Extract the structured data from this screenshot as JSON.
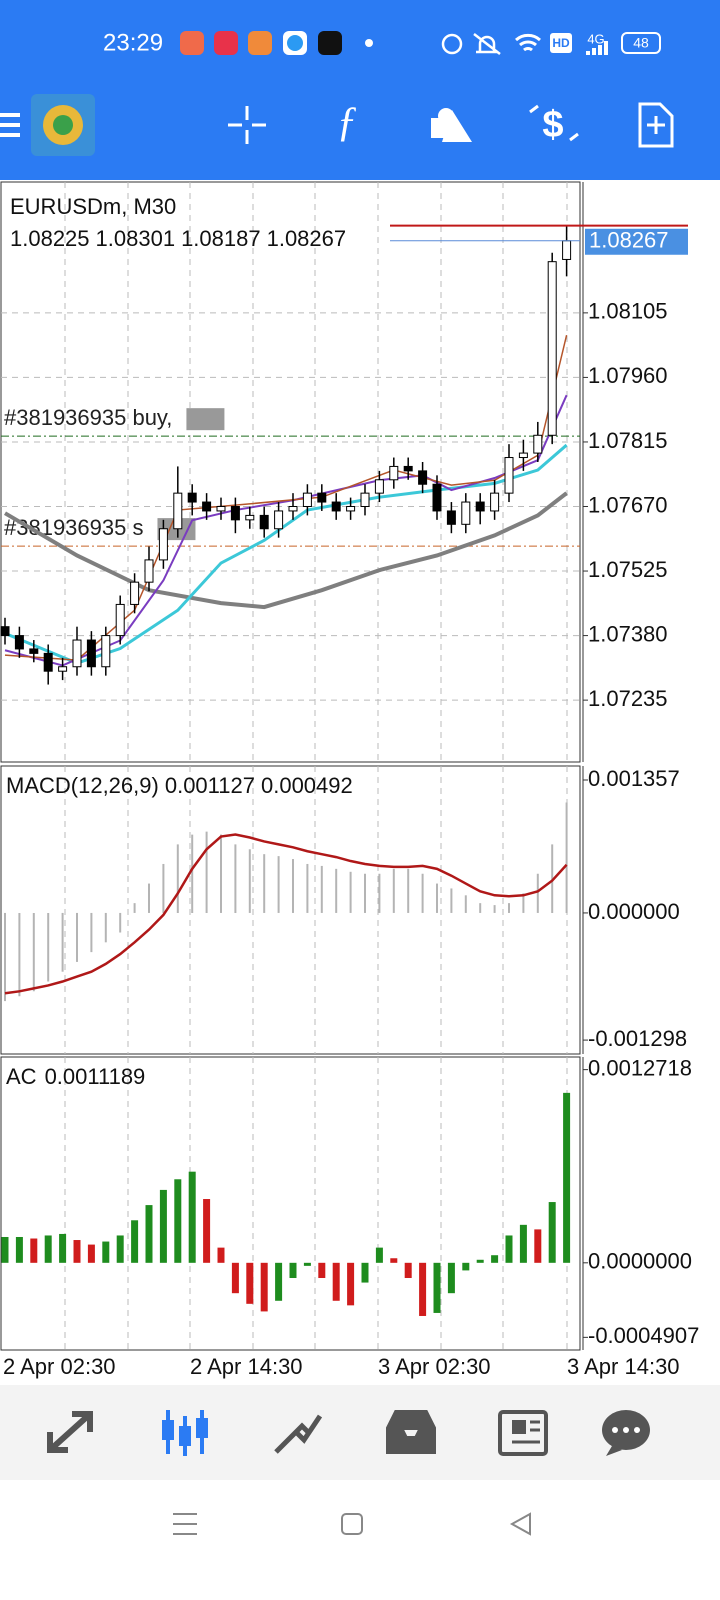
{
  "status_bar": {
    "time": "23:29",
    "hd": "HD",
    "network": "4G",
    "battery": "48"
  },
  "chart_data": [
    {
      "type": "candlestick",
      "title": "EURUSDm, M30",
      "candles": [
        [
          1.074,
          1.0742,
          1.0736,
          1.0738
        ],
        [
          1.0738,
          1.074,
          1.0733,
          1.0735
        ],
        [
          1.0735,
          1.0737,
          1.0732,
          1.0734
        ],
        [
          1.0734,
          1.0736,
          1.0727,
          1.073
        ],
        [
          1.073,
          1.0733,
          1.0728,
          1.0731
        ],
        [
          1.0731,
          1.074,
          1.0729,
          1.0737
        ],
        [
          1.0737,
          1.0739,
          1.0729,
          1.0731
        ],
        [
          1.0731,
          1.074,
          1.0729,
          1.0738
        ],
        [
          1.0738,
          1.0747,
          1.0736,
          1.0745
        ],
        [
          1.0745,
          1.0752,
          1.0743,
          1.075
        ],
        [
          1.075,
          1.0758,
          1.0748,
          1.0755
        ],
        [
          1.0755,
          1.0764,
          1.0753,
          1.0762
        ],
        [
          1.0762,
          1.0776,
          1.076,
          1.077
        ],
        [
          1.077,
          1.0772,
          1.0765,
          1.0768
        ],
        [
          1.0768,
          1.077,
          1.0764,
          1.0766
        ],
        [
          1.0766,
          1.0769,
          1.0764,
          1.0767
        ],
        [
          1.0767,
          1.0769,
          1.0761,
          1.0764
        ],
        [
          1.0764,
          1.0767,
          1.0762,
          1.0765
        ],
        [
          1.0765,
          1.0767,
          1.076,
          1.0762
        ],
        [
          1.0762,
          1.0768,
          1.076,
          1.0766
        ],
        [
          1.0766,
          1.077,
          1.0764,
          1.0767
        ],
        [
          1.0767,
          1.0772,
          1.0765,
          1.077
        ],
        [
          1.077,
          1.0772,
          1.0766,
          1.0768
        ],
        [
          1.0768,
          1.077,
          1.0764,
          1.0766
        ],
        [
          1.0766,
          1.0769,
          1.0764,
          1.0767
        ],
        [
          1.0767,
          1.0772,
          1.0765,
          1.077
        ],
        [
          1.077,
          1.0775,
          1.0768,
          1.0773
        ],
        [
          1.0773,
          1.0778,
          1.0771,
          1.0776
        ],
        [
          1.0776,
          1.0778,
          1.0773,
          1.0775
        ],
        [
          1.0775,
          1.0777,
          1.077,
          1.0772
        ],
        [
          1.0772,
          1.0774,
          1.0764,
          1.0766
        ],
        [
          1.0766,
          1.0768,
          1.0761,
          1.0763
        ],
        [
          1.0763,
          1.077,
          1.0761,
          1.0768
        ],
        [
          1.0768,
          1.077,
          1.0763,
          1.0766
        ],
        [
          1.0766,
          1.0773,
          1.0764,
          1.077
        ],
        [
          1.077,
          1.0781,
          1.0768,
          1.0778
        ],
        [
          1.0778,
          1.0782,
          1.0775,
          1.0779
        ],
        [
          1.0779,
          1.0786,
          1.0777,
          1.0783
        ],
        [
          1.0783,
          1.0824,
          1.0781,
          1.0822
        ],
        [
          1.08225,
          1.08301,
          1.08187,
          1.08267
        ]
      ],
      "up_color": "#ffffff",
      "down_color": "#000000",
      "ylim": [
        1.07096,
        1.08399
      ],
      "yticks": [
        1.08105,
        {
          "value": 1.0796,
          "label": "1.07960"
        },
        1.07815,
        {
          "value": 1.0767,
          "label": "1.07670"
        },
        1.07525,
        {
          "value": 1.0738,
          "label": "1.07380"
        },
        1.07235
      ],
      "grid": true,
      "x_labels": [
        "2 Apr 02:30",
        "2 Apr 14:30",
        "3 Apr 02:30",
        "3 Apr 14:30"
      ],
      "moving_averages": [
        {
          "color": "#7f7f7f",
          "width": 4,
          "x": [
            0,
            5,
            10,
            15,
            18,
            22,
            26,
            30,
            34,
            37,
            39
          ],
          "values": [
            1.07655,
            1.0756,
            1.07482,
            1.07453,
            1.07444,
            1.07482,
            1.07527,
            1.0756,
            1.07605,
            1.0765,
            1.077
          ]
        },
        {
          "color": "#3cc8d8",
          "width": 3,
          "x": [
            0,
            5,
            8,
            12,
            15,
            18,
            21,
            26,
            30,
            34,
            37,
            39
          ],
          "values": [
            1.07385,
            1.07318,
            1.07351,
            1.07437,
            1.07543,
            1.07594,
            1.07662,
            1.07691,
            1.07707,
            1.07722,
            1.07752,
            1.07808
          ]
        },
        {
          "color": "#7a3cc0",
          "width": 2,
          "x": [
            0,
            4,
            8,
            11,
            13,
            16,
            20,
            26,
            29,
            31,
            34,
            37,
            39
          ],
          "values": [
            1.07347,
            1.07313,
            1.07369,
            1.07504,
            1.07639,
            1.07662,
            1.07684,
            1.07729,
            1.0774,
            1.07707,
            1.07734,
            1.07774,
            1.0792
          ]
        },
        {
          "color": "#b5552a",
          "width": 1.5,
          "x": [
            0,
            5,
            9,
            12,
            16,
            22,
            27,
            31,
            34,
            37,
            39
          ],
          "values": [
            1.07336,
            1.07325,
            1.07437,
            1.07662,
            1.07673,
            1.07691,
            1.07752,
            1.07718,
            1.07729,
            1.07785,
            1.08055
          ]
        }
      ],
      "orders": [
        {
          "label": "#381936935 buy,",
          "price": 1.07828,
          "color": "#1f6b1f"
        },
        {
          "label": "#381936935 s",
          "price": 1.07581,
          "color": "#c86428"
        }
      ]
    },
    {
      "type": "macd",
      "title": "MACD(12,26,9)",
      "histogram": [
        -0.0009,
        -0.00085,
        -0.0008,
        -0.0007,
        -0.0006,
        -0.0005,
        -0.0004,
        -0.0003,
        -0.0002,
        0.0001,
        0.0003,
        0.0005,
        0.0007,
        0.0008,
        0.00083,
        0.0008,
        0.0007,
        0.00065,
        0.0006,
        0.00058,
        0.00055,
        0.0005,
        0.00048,
        0.00045,
        0.00042,
        0.0004,
        0.0004,
        0.00045,
        0.00045,
        0.0004,
        0.0003,
        0.00025,
        0.00018,
        0.0001,
        8e-05,
        0.0001,
        0.0002,
        0.0004,
        0.0007,
        0.001127
      ],
      "signal": [
        -0.00082,
        -0.0008,
        -0.00077,
        -0.00074,
        -0.0007,
        -0.00065,
        -0.0006,
        -0.00052,
        -0.00042,
        -0.0003,
        -0.00017,
        -2e-05,
        0.0002,
        0.00045,
        0.00065,
        0.00078,
        0.0008,
        0.00077,
        0.00073,
        0.0007,
        0.00067,
        0.00063,
        0.0006,
        0.00057,
        0.00053,
        0.0005,
        0.00048,
        0.00047,
        0.00047,
        0.00048,
        0.00045,
        0.00038,
        0.0003,
        0.00022,
        0.00018,
        0.00017,
        0.00018,
        0.00022,
        0.00033,
        0.000492
      ],
      "histogram_color": "#b4b4b4",
      "signal_color": "#b01818",
      "ylim": [
        -0.00144,
        0.0015
      ],
      "yticks": [
        0.001357,
        {
          "value": 0,
          "label": "0.000000"
        },
        -0.001298
      ]
    },
    {
      "type": "ac",
      "title": "AC",
      "values": [
        0.00017,
        0.00017,
        0.00016,
        0.00018,
        0.00019,
        0.00015,
        0.00012,
        0.00014,
        0.00018,
        0.00028,
        0.00038,
        0.00048,
        0.00055,
        0.0006,
        0.00042,
        0.0001,
        -0.0002,
        -0.00027,
        -0.00032,
        -0.00025,
        -0.0001,
        -2e-05,
        -0.0001,
        -0.00025,
        -0.00028,
        -0.00013,
        0.0001,
        3e-05,
        -0.0001,
        -0.00035,
        -0.00033,
        -0.0002,
        -5e-05,
        2e-05,
        5e-05,
        0.00018,
        0.00025,
        0.00022,
        0.0004,
        0.0011189
      ],
      "up_color": "#1e8c1e",
      "down_color": "#d01c1c",
      "ylim": [
        -0.000574,
        0.001355
      ],
      "yticks": [
        0.0012718,
        {
          "value": 0,
          "label": "0.0000000"
        },
        -0.0004907
      ]
    }
  ]
}
